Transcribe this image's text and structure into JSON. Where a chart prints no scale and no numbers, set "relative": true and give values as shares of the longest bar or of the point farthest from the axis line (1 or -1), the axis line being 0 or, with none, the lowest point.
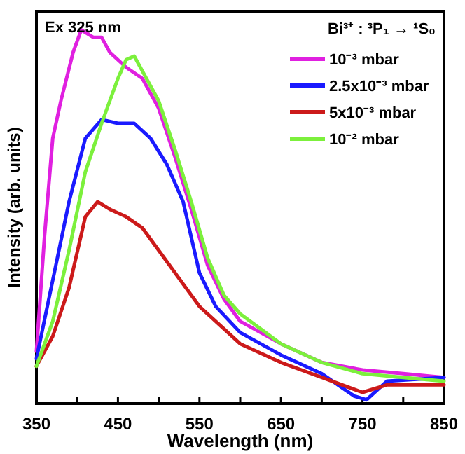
{
  "chart_data": {
    "type": "line",
    "xlabel": "Wavelength (nm)",
    "ylabel": "Intensity (arb. units)",
    "relative": true,
    "legend_title": "Bi³⁺ : ³P₁ → ¹S₀",
    "legend": "top right",
    "annotations": [
      "Ex 325 nm"
    ],
    "xlim": [
      350,
      850
    ],
    "xticks": [
      350,
      {
        "value": 400,
        "label": null
      },
      450,
      {
        "value": 500,
        "label": null
      },
      550,
      {
        "value": 600,
        "label": null
      },
      650,
      {
        "value": 700,
        "label": null
      },
      750,
      {
        "value": 800,
        "label": null
      },
      850
    ],
    "series": [
      {
        "name": "10⁻³ mbar",
        "color": "#e020e0",
        "x": [
          350,
          360,
          370,
          380,
          395,
          405,
          420,
          430,
          440,
          460,
          480,
          500,
          520,
          540,
          560,
          580,
          600,
          650,
          700,
          750,
          800,
          850
        ],
        "values": [
          0.14,
          0.45,
          0.71,
          0.81,
          0.94,
          1.0,
          0.98,
          0.98,
          0.94,
          0.9,
          0.87,
          0.79,
          0.66,
          0.52,
          0.37,
          0.28,
          0.22,
          0.16,
          0.11,
          0.09,
          0.08,
          0.07
        ]
      },
      {
        "name": "2.5x10⁻³ mbar",
        "color": "#1a1aff",
        "x": [
          350,
          370,
          390,
          410,
          430,
          450,
          470,
          490,
          510,
          530,
          550,
          570,
          600,
          650,
          700,
          740,
          755,
          780,
          850
        ],
        "values": [
          0.12,
          0.33,
          0.54,
          0.71,
          0.76,
          0.75,
          0.75,
          0.71,
          0.64,
          0.54,
          0.35,
          0.26,
          0.19,
          0.13,
          0.08,
          0.02,
          0.01,
          0.06,
          0.07
        ]
      },
      {
        "name": "5x10⁻³ mbar",
        "color": "#cc1a1a",
        "x": [
          350,
          370,
          390,
          410,
          425,
          440,
          460,
          480,
          500,
          520,
          550,
          600,
          650,
          700,
          750,
          780,
          850
        ],
        "values": [
          0.1,
          0.18,
          0.31,
          0.5,
          0.54,
          0.52,
          0.5,
          0.47,
          0.41,
          0.35,
          0.26,
          0.16,
          0.11,
          0.07,
          0.03,
          0.05,
          0.05
        ]
      },
      {
        "name": "10⁻² mbar",
        "color": "#7cf03c",
        "x": [
          350,
          370,
          390,
          410,
          430,
          450,
          460,
          470,
          480,
          500,
          520,
          540,
          560,
          580,
          600,
          650,
          700,
          750,
          800,
          850
        ],
        "values": [
          0.1,
          0.22,
          0.41,
          0.62,
          0.75,
          0.87,
          0.92,
          0.93,
          0.89,
          0.81,
          0.68,
          0.54,
          0.39,
          0.29,
          0.24,
          0.16,
          0.11,
          0.08,
          0.07,
          0.06
        ]
      }
    ]
  }
}
